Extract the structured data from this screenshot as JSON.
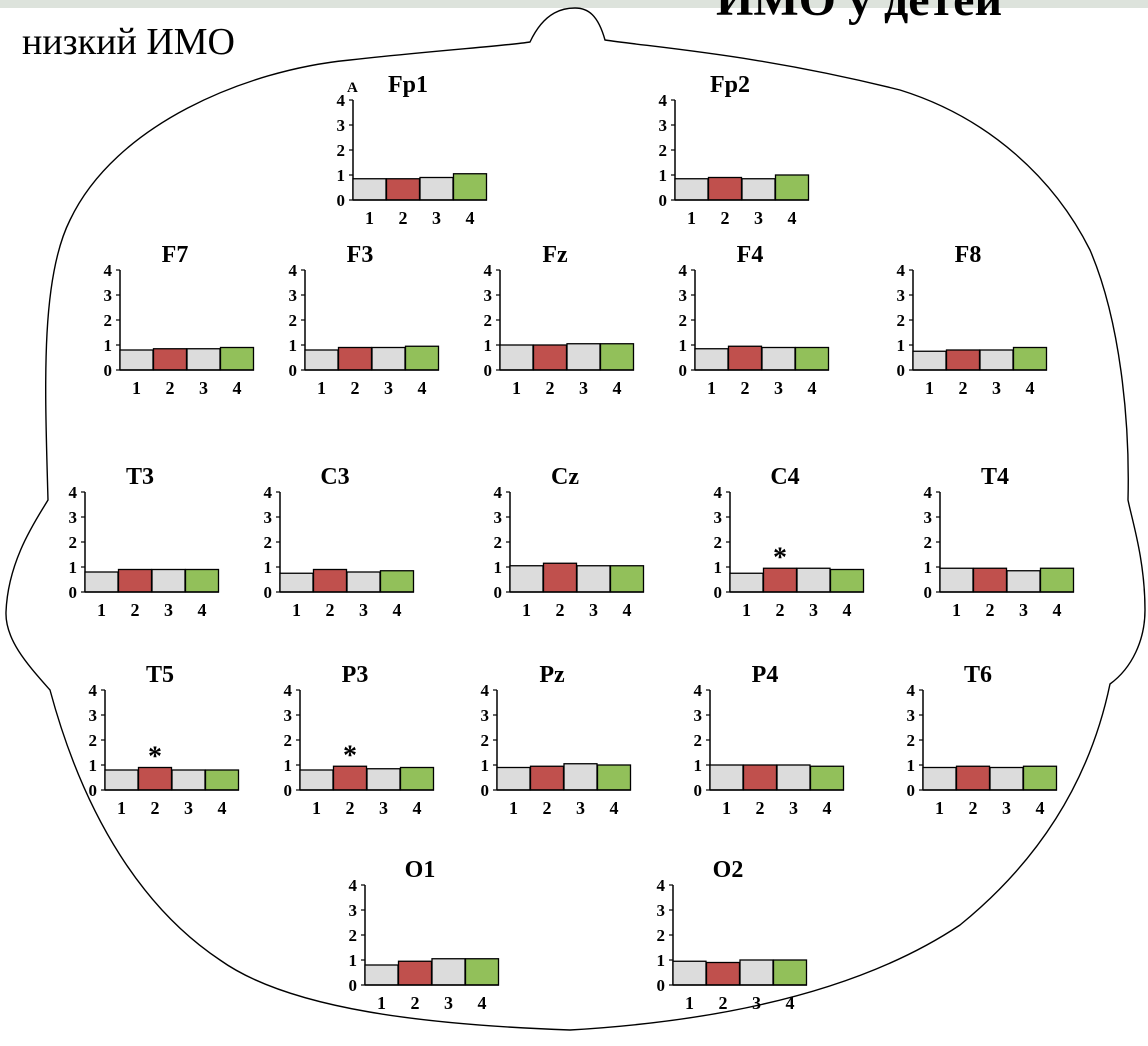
{
  "page": {
    "corner_title": "ИМО у детей",
    "subtitle": "низкий ИМО"
  },
  "colors": {
    "bar_1": "#dcdcdc",
    "bar_2": "#c0504d",
    "bar_3": "#dcdcdc",
    "bar_4": "#92c05a",
    "outline": "#000000"
  },
  "chart_data": [
    {
      "type": "bar",
      "title": "Fp1",
      "panel_letter": "А",
      "categories": [
        "1",
        "2",
        "3",
        "4"
      ],
      "values": [
        0.85,
        0.85,
        0.9,
        1.05
      ],
      "significant": [],
      "ylim": [
        0,
        4
      ],
      "yticks": [
        "0",
        "1",
        "2",
        "3",
        "4"
      ]
    },
    {
      "type": "bar",
      "title": "Fp2",
      "categories": [
        "1",
        "2",
        "3",
        "4"
      ],
      "values": [
        0.85,
        0.9,
        0.85,
        1.0
      ],
      "significant": [],
      "ylim": [
        0,
        4
      ],
      "yticks": [
        "0",
        "1",
        "2",
        "3",
        "4"
      ]
    },
    {
      "type": "bar",
      "title": "F7",
      "categories": [
        "1",
        "2",
        "3",
        "4"
      ],
      "values": [
        0.8,
        0.85,
        0.85,
        0.9
      ],
      "significant": [],
      "ylim": [
        0,
        4
      ],
      "yticks": [
        "0",
        "1",
        "2",
        "3",
        "4"
      ]
    },
    {
      "type": "bar",
      "title": "F3",
      "categories": [
        "1",
        "2",
        "3",
        "4"
      ],
      "values": [
        0.8,
        0.9,
        0.9,
        0.95
      ],
      "significant": [],
      "ylim": [
        0,
        4
      ],
      "yticks": [
        "0",
        "1",
        "2",
        "3",
        "4"
      ]
    },
    {
      "type": "bar",
      "title": "Fz",
      "categories": [
        "1",
        "2",
        "3",
        "4"
      ],
      "values": [
        1.0,
        1.0,
        1.05,
        1.05
      ],
      "significant": [],
      "ylim": [
        0,
        4
      ],
      "yticks": [
        "0",
        "1",
        "2",
        "3",
        "4"
      ]
    },
    {
      "type": "bar",
      "title": "F4",
      "categories": [
        "1",
        "2",
        "3",
        "4"
      ],
      "values": [
        0.85,
        0.95,
        0.9,
        0.9
      ],
      "significant": [],
      "ylim": [
        0,
        4
      ],
      "yticks": [
        "0",
        "1",
        "2",
        "3",
        "4"
      ]
    },
    {
      "type": "bar",
      "title": "F8",
      "categories": [
        "1",
        "2",
        "3",
        "4"
      ],
      "values": [
        0.75,
        0.8,
        0.8,
        0.9
      ],
      "significant": [],
      "ylim": [
        0,
        4
      ],
      "yticks": [
        "0",
        "1",
        "2",
        "3",
        "4"
      ]
    },
    {
      "type": "bar",
      "title": "T3",
      "categories": [
        "1",
        "2",
        "3",
        "4"
      ],
      "values": [
        0.8,
        0.9,
        0.9,
        0.9
      ],
      "significant": [],
      "ylim": [
        0,
        4
      ],
      "yticks": [
        "0",
        "1",
        "2",
        "3",
        "4"
      ]
    },
    {
      "type": "bar",
      "title": "C3",
      "categories": [
        "1",
        "2",
        "3",
        "4"
      ],
      "values": [
        0.75,
        0.9,
        0.8,
        0.85
      ],
      "significant": [],
      "ylim": [
        0,
        4
      ],
      "yticks": [
        "0",
        "1",
        "2",
        "3",
        "4"
      ]
    },
    {
      "type": "bar",
      "title": "Cz",
      "categories": [
        "1",
        "2",
        "3",
        "4"
      ],
      "values": [
        1.05,
        1.15,
        1.05,
        1.05
      ],
      "significant": [],
      "ylim": [
        0,
        4
      ],
      "yticks": [
        "0",
        "1",
        "2",
        "3",
        "4"
      ]
    },
    {
      "type": "bar",
      "title": "C4",
      "categories": [
        "1",
        "2",
        "3",
        "4"
      ],
      "values": [
        0.75,
        0.95,
        0.95,
        0.9
      ],
      "significant": [
        "2"
      ],
      "ylim": [
        0,
        4
      ],
      "yticks": [
        "0",
        "1",
        "2",
        "3",
        "4"
      ]
    },
    {
      "type": "bar",
      "title": "T4",
      "categories": [
        "1",
        "2",
        "3",
        "4"
      ],
      "values": [
        0.95,
        0.95,
        0.85,
        0.95
      ],
      "significant": [],
      "ylim": [
        0,
        4
      ],
      "yticks": [
        "0",
        "1",
        "2",
        "3",
        "4"
      ]
    },
    {
      "type": "bar",
      "title": "T5",
      "categories": [
        "1",
        "2",
        "3",
        "4"
      ],
      "values": [
        0.8,
        0.9,
        0.8,
        0.8
      ],
      "significant": [
        "2"
      ],
      "ylim": [
        0,
        4
      ],
      "yticks": [
        "0",
        "1",
        "2",
        "3",
        "4"
      ]
    },
    {
      "type": "bar",
      "title": "P3",
      "categories": [
        "1",
        "2",
        "3",
        "4"
      ],
      "values": [
        0.8,
        0.95,
        0.85,
        0.9
      ],
      "significant": [
        "2"
      ],
      "ylim": [
        0,
        4
      ],
      "yticks": [
        "0",
        "1",
        "2",
        "3",
        "4"
      ]
    },
    {
      "type": "bar",
      "title": "Pz",
      "categories": [
        "1",
        "2",
        "3",
        "4"
      ],
      "values": [
        0.9,
        0.95,
        1.05,
        1.0
      ],
      "significant": [],
      "ylim": [
        0,
        4
      ],
      "yticks": [
        "0",
        "1",
        "2",
        "3",
        "4"
      ]
    },
    {
      "type": "bar",
      "title": "P4",
      "categories": [
        "1",
        "2",
        "3",
        "4"
      ],
      "values": [
        1.0,
        1.0,
        1.0,
        0.95
      ],
      "significant": [],
      "ylim": [
        0,
        4
      ],
      "yticks": [
        "0",
        "1",
        "2",
        "3",
        "4"
      ]
    },
    {
      "type": "bar",
      "title": "T6",
      "categories": [
        "1",
        "2",
        "3",
        "4"
      ],
      "values": [
        0.9,
        0.95,
        0.9,
        0.95
      ],
      "significant": [],
      "ylim": [
        0,
        4
      ],
      "yticks": [
        "0",
        "1",
        "2",
        "3",
        "4"
      ]
    },
    {
      "type": "bar",
      "title": "O1",
      "categories": [
        "1",
        "2",
        "3",
        "4"
      ],
      "values": [
        0.8,
        0.95,
        1.05,
        1.05
      ],
      "significant": [],
      "ylim": [
        0,
        4
      ],
      "yticks": [
        "0",
        "1",
        "2",
        "3",
        "4"
      ]
    },
    {
      "type": "bar",
      "title": "O2",
      "categories": [
        "1",
        "2",
        "3",
        "4"
      ],
      "values": [
        0.95,
        0.9,
        1.0,
        1.0
      ],
      "significant": [],
      "ylim": [
        0,
        4
      ],
      "yticks": [
        "0",
        "1",
        "2",
        "3",
        "4"
      ]
    }
  ]
}
